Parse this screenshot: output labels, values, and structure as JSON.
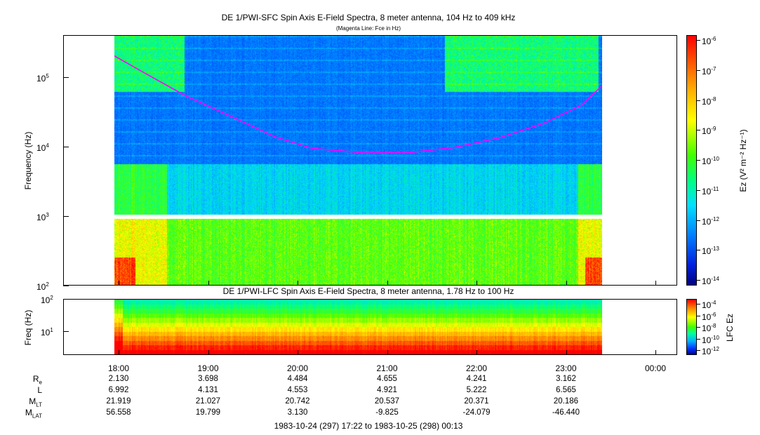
{
  "chart_data": [
    {
      "type": "heatmap",
      "title": "DE 1/PWI-SFC  Spin Axis E-Field Spectra, 8 meter antenna, 104 Hz to 409 kHz",
      "subtitle": "(Magenta Line: Fce in Hz)",
      "ylabel": "Frequency (Hz)",
      "yscale": "log",
      "ylim": [
        100,
        409000
      ],
      "yticks": [
        "10^2",
        "10^3",
        "10^4",
        "10^5"
      ],
      "colorbar": {
        "label": "Ez (V² m⁻² Hz⁻¹)",
        "scale": "log",
        "range": [
          1e-14,
          1e-06
        ],
        "ticks": [
          "10^-6",
          "10^-7",
          "10^-8",
          "10^-9",
          "10^-10",
          "10^-11",
          "10^-12",
          "10^-13",
          "10^-14"
        ]
      },
      "overlay_line": {
        "name": "Fce",
        "color": "#ff00ff",
        "points": [
          {
            "t": "17:57",
            "f": 210000
          },
          {
            "t": "18:20",
            "f": 110000
          },
          {
            "t": "18:45",
            "f": 55000
          },
          {
            "t": "19:15",
            "f": 28000
          },
          {
            "t": "19:45",
            "f": 14000
          },
          {
            "t": "20:10",
            "f": 9500
          },
          {
            "t": "20:45",
            "f": 8200
          },
          {
            "t": "21:15",
            "f": 8300
          },
          {
            "t": "21:45",
            "f": 9800
          },
          {
            "t": "22:15",
            "f": 13500
          },
          {
            "t": "22:45",
            "f": 22000
          },
          {
            "t": "23:10",
            "f": 40000
          },
          {
            "t": "23:25",
            "f": 80000
          }
        ]
      }
    },
    {
      "type": "heatmap",
      "title": "DE 1/PWI-LFC  Spin Axis E-Field Spectra, 8 meter antenna, 1.78 Hz to 100 Hz",
      "ylabel": "Freq (Hz)",
      "yscale": "log",
      "ylim": [
        1.78,
        100
      ],
      "yticks": [
        "10^1",
        "10^2"
      ],
      "colorbar": {
        "label": "LFC Ez",
        "scale": "log",
        "range": [
          1e-12,
          0.0001
        ],
        "ticks": [
          "10^-4",
          "10^-6",
          "10^-8",
          "10^-10",
          "10^-12"
        ]
      }
    }
  ],
  "time_axis": {
    "ticks": [
      "18:00",
      "19:00",
      "20:00",
      "21:00",
      "22:00",
      "23:00",
      "00:00"
    ],
    "range_label": "1983-10-24 (297) 17:22 to 1983-10-25 (298) 00:13"
  },
  "ephemeris": {
    "rows": [
      {
        "label": "R",
        "sub": "e",
        "values": [
          "2.130",
          "3.698",
          "4.484",
          "4.655",
          "4.241",
          "3.162"
        ]
      },
      {
        "label": "L",
        "sub": "",
        "values": [
          "6.992",
          "4.131",
          "4.553",
          "4.921",
          "5.222",
          "6.565"
        ]
      },
      {
        "label": "M",
        "sub": "LT",
        "values": [
          "21.919",
          "21.027",
          "20.742",
          "20.537",
          "20.371",
          "20.186"
        ]
      },
      {
        "label": "M",
        "sub": "LAT",
        "values": [
          "56.558",
          "19.799",
          "3.130",
          "-9.825",
          "-24.079",
          "-46.440"
        ]
      }
    ]
  }
}
